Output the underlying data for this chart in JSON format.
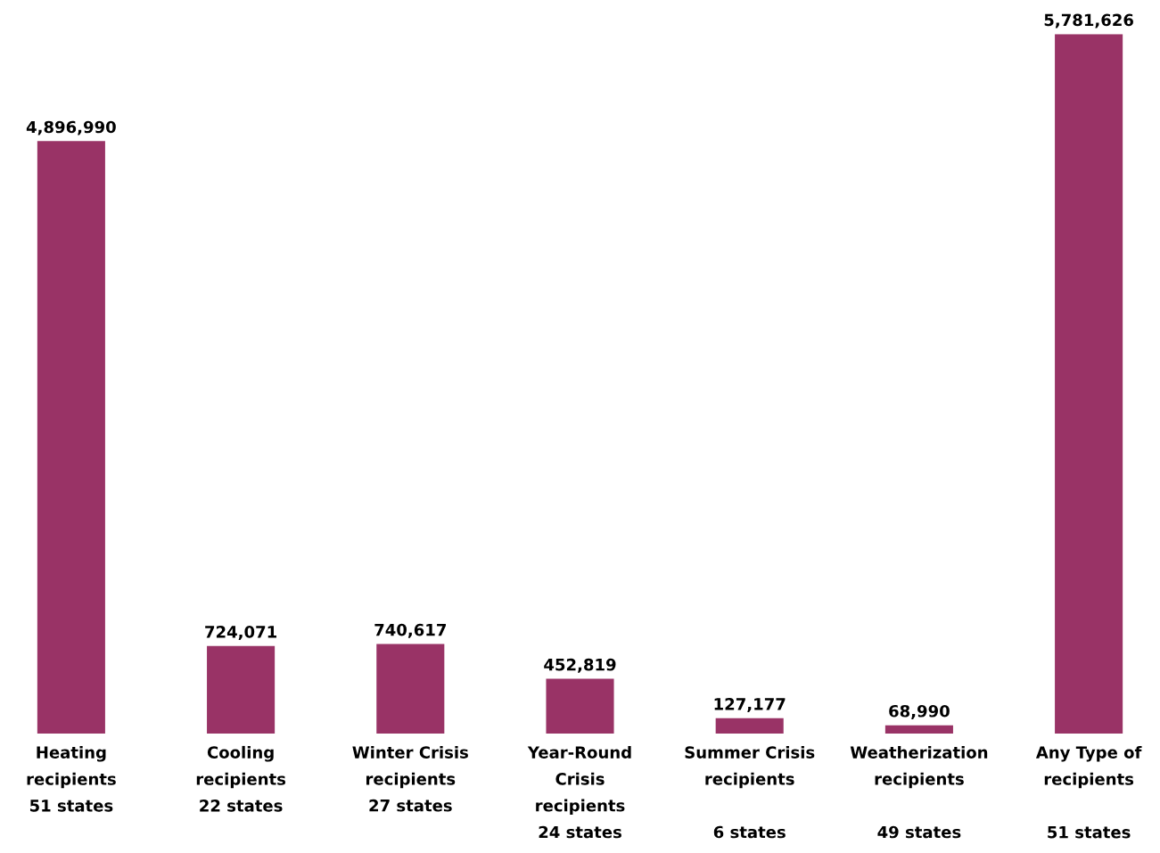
{
  "chart_data": {
    "type": "bar",
    "categories": [
      "Heating\nrecipients\n51 states",
      "Cooling\nrecipients\n22 states",
      "Winter Crisis\nrecipients\n27 states",
      "Year-Round\nCrisis\nrecipients\n24 states",
      "Summer Crisis\nrecipients\n\n6 states",
      "Weatherization\nrecipients\n\n49 states",
      "Any Type of\nrecipients\n\n51 states"
    ],
    "values": [
      4896990,
      724071,
      740617,
      452819,
      127177,
      68990,
      5781626
    ],
    "value_labels": [
      "4,896,990",
      "724,071",
      "740,617",
      "452,819",
      "127,177",
      "68,990",
      "5,781,626"
    ],
    "color": "#993366",
    "tick_labels": "x"
  }
}
